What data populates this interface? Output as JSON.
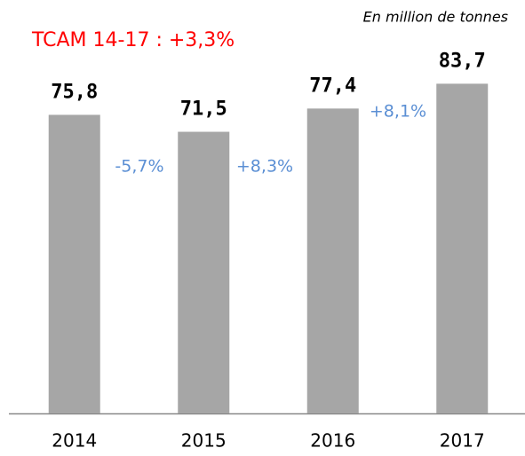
{
  "chart_data": {
    "type": "bar",
    "title": "TCAM 14-17 : +3,3%",
    "subtitle": "En million de tonnes",
    "categories": [
      "2014",
      "2015",
      "2016",
      "2017"
    ],
    "values": [
      75.8,
      71.5,
      77.4,
      83.7
    ],
    "value_labels": [
      "75,8",
      "71,5",
      "77,4",
      "83,7"
    ],
    "annotations": [
      "-5,7%",
      "+8,3%",
      "+8,1%"
    ],
    "color": "#a6a6a6",
    "title_color": "#ff0000",
    "annotation_color": "#5b8fd4",
    "ylim": [
      0,
      100
    ],
    "grid": false
  }
}
